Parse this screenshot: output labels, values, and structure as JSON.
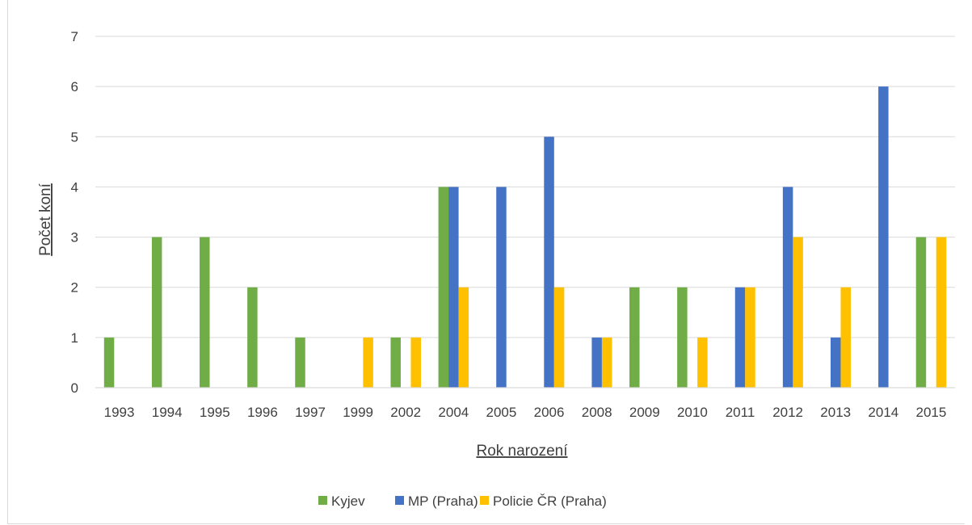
{
  "chart_data": {
    "type": "bar",
    "xlabel": "Rok narození",
    "ylabel": "Počet koní",
    "ylim": [
      0,
      7
    ],
    "yticks": [
      "0",
      "1",
      "2",
      "3",
      "4",
      "5",
      "6",
      "7"
    ],
    "grid": true,
    "legend_position": "bottom",
    "categories": [
      "1993",
      "1994",
      "1995",
      "1996",
      "1997",
      "1999",
      "2002",
      "2004",
      "2005",
      "2006",
      "2008",
      "2009",
      "2010",
      "2011",
      "2012",
      "2013",
      "2014",
      "2015"
    ],
    "series": [
      {
        "name": "Kyjev",
        "color": "#70AD47",
        "values": [
          1,
          3,
          3,
          2,
          1,
          0,
          1,
          4,
          0,
          0,
          0,
          2,
          2,
          0,
          0,
          0,
          0,
          3
        ]
      },
      {
        "name": "MP (Praha)",
        "color": "#4472C4",
        "values": [
          0,
          0,
          0,
          0,
          0,
          0,
          0,
          4,
          4,
          5,
          1,
          0,
          0,
          2,
          4,
          1,
          6,
          0
        ]
      },
      {
        "name": "Policie ČR (Praha)",
        "color": "#FFC000",
        "values": [
          0,
          0,
          0,
          0,
          0,
          1,
          1,
          2,
          0,
          2,
          1,
          0,
          1,
          2,
          3,
          2,
          0,
          3
        ]
      }
    ]
  }
}
